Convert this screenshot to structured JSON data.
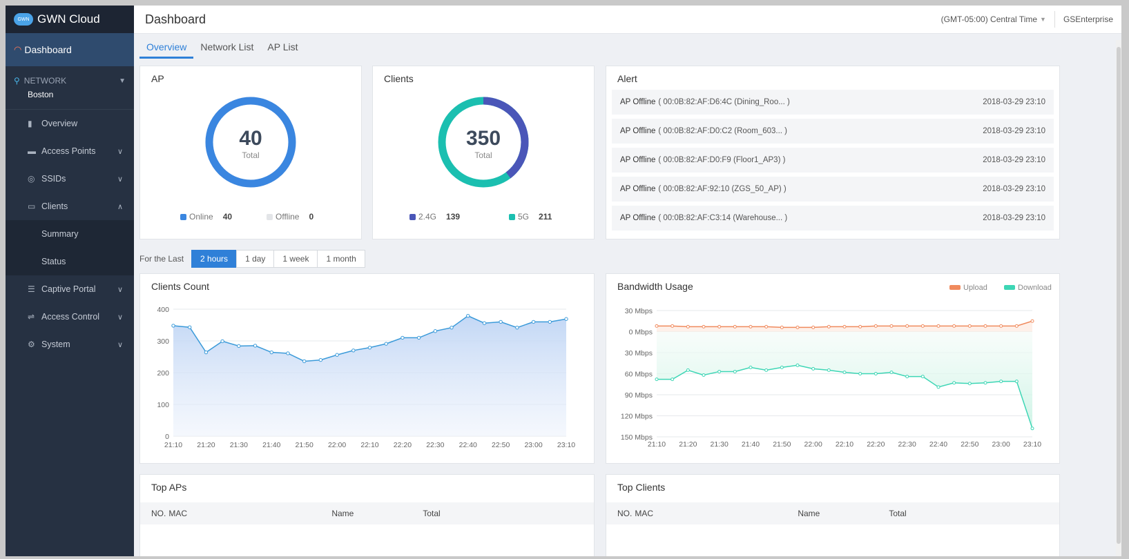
{
  "app": {
    "brand": "GWN Cloud",
    "logo_text": "GWN"
  },
  "sidebar": {
    "dashboard_label": "Dashboard",
    "network_label": "NETWORK",
    "network_name": "Boston",
    "items": [
      {
        "label": "Overview",
        "icon": "bar-chart-icon"
      },
      {
        "label": "Access Points",
        "icon": "access-point-icon"
      },
      {
        "label": "SSIDs",
        "icon": "wifi-icon"
      },
      {
        "label": "Clients",
        "icon": "devices-icon"
      },
      {
        "label": "Summary"
      },
      {
        "label": "Status"
      },
      {
        "label": "Captive Portal",
        "icon": "list-icon"
      },
      {
        "label": "Access Control",
        "icon": "sliders-icon"
      },
      {
        "label": "System",
        "icon": "gear-icon"
      }
    ]
  },
  "header": {
    "title": "Dashboard",
    "timezone": "(GMT-05:00) Central Time",
    "account": "GSEnterprise"
  },
  "tabs": [
    "Overview",
    "Network List",
    "AP List"
  ],
  "ap_card": {
    "title": "AP",
    "total": "40",
    "total_label": "Total",
    "online_label": "Online",
    "online": "40",
    "offline_label": "Offline",
    "offline": "0",
    "online_fraction": 1.0,
    "color": "#3a86e0"
  },
  "clients_card": {
    "title": "Clients",
    "total": "350",
    "total_label": "Total",
    "g24_label": "2.4G",
    "g24": "139",
    "g5_label": "5G",
    "g5": "211",
    "color_24": "#4a56b8",
    "color_5": "#1bbfb0"
  },
  "alert_card": {
    "title": "Alert",
    "rows": [
      {
        "type": "AP Offline",
        "detail": "( 00:0B:82:AF:D6:4C (Dining_Roo... )",
        "time": "2018-03-29 23:10"
      },
      {
        "type": "AP Offline",
        "detail": "( 00:0B:82:AF:D0:C2 (Room_603... )",
        "time": "2018-03-29 23:10"
      },
      {
        "type": "AP Offline",
        "detail": "( 00:0B:82:AF:D0:F9 (Floor1_AP3) )",
        "time": "2018-03-29 23:10"
      },
      {
        "type": "AP Offline",
        "detail": "( 00:0B:82:AF:92:10 (ZGS_50_AP) )",
        "time": "2018-03-29 23:10"
      },
      {
        "type": "AP Offline",
        "detail": "( 00:0B:82:AF:C3:14 (Warehouse... )",
        "time": "2018-03-29 23:10"
      }
    ]
  },
  "range": {
    "label": "For the Last",
    "options": [
      "2 hours",
      "1 day",
      "1 week",
      "1 month"
    ],
    "selected": "2 hours"
  },
  "clients_count_title": "Clients Count",
  "bandwidth_title": "Bandwidth Usage",
  "top_aps": {
    "title": "Top APs",
    "cols": [
      "NO.",
      "MAC",
      "Name",
      "Total"
    ]
  },
  "top_clients": {
    "title": "Top Clients",
    "cols": [
      "NO.",
      "MAC",
      "Name",
      "Total"
    ]
  },
  "chart_data": [
    {
      "type": "area",
      "title": "Clients Count",
      "x": [
        "21:10",
        "21:15",
        "21:20",
        "21:25",
        "21:30",
        "21:35",
        "21:40",
        "21:45",
        "21:50",
        "21:55",
        "22:00",
        "22:05",
        "22:10",
        "22:15",
        "22:20",
        "22:25",
        "22:30",
        "22:35",
        "22:40",
        "22:45",
        "22:50",
        "22:55",
        "23:00",
        "23:05",
        "23:10"
      ],
      "x_ticks": [
        "21:10",
        "21:20",
        "21:30",
        "21:40",
        "21:50",
        "22:00",
        "22:10",
        "22:20",
        "22:30",
        "22:40",
        "22:50",
        "23:00",
        "23:10"
      ],
      "y_ticks": [
        "0",
        "100",
        "200",
        "300",
        "400"
      ],
      "ylim": [
        0,
        400
      ],
      "series": [
        {
          "values": [
            348,
            343,
            264,
            299,
            284,
            285,
            264,
            261,
            236,
            240,
            256,
            270,
            279,
            291,
            310,
            310,
            331,
            342,
            379,
            356,
            360,
            342,
            360,
            360,
            369
          ]
        }
      ],
      "color": "#3a9ad9"
    },
    {
      "type": "line",
      "title": "Bandwidth Usage",
      "x": [
        "21:10",
        "21:15",
        "21:20",
        "21:25",
        "21:30",
        "21:35",
        "21:40",
        "21:45",
        "21:50",
        "21:55",
        "22:00",
        "22:05",
        "22:10",
        "22:15",
        "22:20",
        "22:25",
        "22:30",
        "22:35",
        "22:40",
        "22:45",
        "22:50",
        "22:55",
        "23:00",
        "23:05",
        "23:10"
      ],
      "x_ticks": [
        "21:10",
        "21:20",
        "21:30",
        "21:40",
        "21:50",
        "22:00",
        "22:10",
        "22:20",
        "22:30",
        "22:40",
        "22:50",
        "23:00",
        "23:10"
      ],
      "y_ticks": [
        "30 Mbps",
        "0 Mbps",
        "30 Mbps",
        "60 Mbps",
        "90 Mbps",
        "120 Mbps",
        "150 Mbps"
      ],
      "ylim": [
        -30,
        150
      ],
      "legend": "top-right",
      "series": [
        {
          "name": "Upload",
          "color": "#f08a5d",
          "values": [
            -8,
            -8,
            -7,
            -7,
            -7,
            -7,
            -7,
            -7,
            -6,
            -6,
            -6,
            -7,
            -7,
            -7,
            -8,
            -8,
            -8,
            -8,
            -8,
            -8,
            -8,
            -8,
            -8,
            -8,
            -15
          ]
        },
        {
          "name": "Download",
          "color": "#3dd6b5",
          "values": [
            68,
            68,
            55,
            62,
            57,
            57,
            51,
            55,
            51,
            48,
            53,
            55,
            58,
            60,
            60,
            58,
            64,
            64,
            79,
            73,
            74,
            73,
            71,
            71,
            138
          ]
        }
      ]
    }
  ]
}
